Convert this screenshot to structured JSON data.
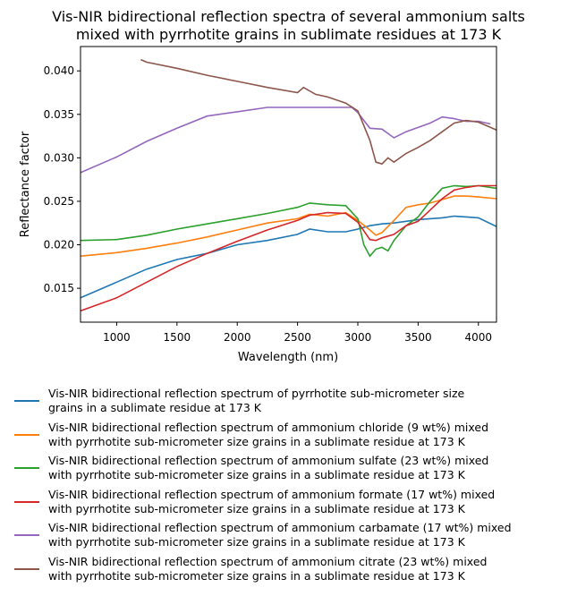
{
  "chart_data": {
    "type": "line",
    "title": "Vis-NIR bidirectional reflection spectra of several ammonium salts\nmixed with pyrrhotite grains in sublimate residues at 173 K",
    "title_lines": [
      "Vis-NIR bidirectional reflection spectra of several ammonium salts",
      "mixed with pyrrhotite grains in sublimate residues at 173 K"
    ],
    "xlabel": "Wavelength (nm)",
    "ylabel": "Reflectance factor",
    "xlim": [
      700,
      4150
    ],
    "ylim": [
      0.0111,
      0.0428
    ],
    "xticks": [
      1000,
      1500,
      2000,
      2500,
      3000,
      3500,
      4000
    ],
    "xtick_labels": [
      "1000",
      "1500",
      "2000",
      "2500",
      "3000",
      "3500",
      "4000"
    ],
    "yticks": [
      0.015,
      0.02,
      0.025,
      0.03,
      0.035,
      0.04
    ],
    "ytick_labels": [
      "0.015",
      "0.020",
      "0.025",
      "0.030",
      "0.035",
      "0.040"
    ],
    "grid": false,
    "legend_position": "below",
    "series": [
      {
        "name": "Vis-NIR bidirectional reflection spectrum of pyrrhotite sub-micrometer size\ngrains in a sublimate residue at 173 K",
        "label_lines": [
          "Vis-NIR bidirectional reflection spectrum of pyrrhotite sub-micrometer size",
          "grains in a sublimate residue at 173 K"
        ],
        "color": "#1f77b4",
        "x": [
          700,
          1000,
          1250,
          1500,
          1750,
          2000,
          2250,
          2500,
          2600,
          2750,
          2900,
          3000,
          3100,
          3200,
          3300,
          3400,
          3500,
          3600,
          3700,
          3800,
          3900,
          4000,
          4150
        ],
        "y": [
          0.0139,
          0.0157,
          0.0172,
          0.0183,
          0.019,
          0.02,
          0.0205,
          0.0212,
          0.0218,
          0.0215,
          0.0215,
          0.0218,
          0.0222,
          0.0224,
          0.0225,
          0.0227,
          0.0229,
          0.023,
          0.0231,
          0.0233,
          0.0232,
          0.0231,
          0.0221
        ]
      },
      {
        "name": "Vis-NIR bidirectional reflection spectrum of ammonium chloride (9 wt%) mixed\nwith pyrrhotite sub-micrometer size grains in a sublimate residue at 173 K",
        "label_lines": [
          "Vis-NIR bidirectional reflection spectrum of ammonium chloride (9 wt%) mixed",
          "with pyrrhotite sub-micrometer size grains in a sublimate residue at 173 K"
        ],
        "color": "#ff7f0e",
        "x": [
          700,
          1000,
          1250,
          1500,
          1750,
          2000,
          2250,
          2500,
          2600,
          2750,
          2900,
          3000,
          3100,
          3150,
          3200,
          3300,
          3400,
          3500,
          3600,
          3700,
          3800,
          3900,
          4000,
          4150
        ],
        "y": [
          0.0187,
          0.0191,
          0.0196,
          0.0202,
          0.0209,
          0.0217,
          0.0225,
          0.023,
          0.0235,
          0.0233,
          0.0237,
          0.0228,
          0.0217,
          0.0211,
          0.0214,
          0.0228,
          0.0243,
          0.0246,
          0.0248,
          0.0252,
          0.0256,
          0.0256,
          0.0255,
          0.0253
        ]
      },
      {
        "name": "Vis-NIR bidirectional reflection spectrum of ammonium sulfate (23 wt%) mixed\nwith pyrrhotite sub-micrometer size grains in a sublimate residue at 173 K",
        "label_lines": [
          "Vis-NIR bidirectional reflection spectrum of ammonium sulfate (23 wt%) mixed",
          "with pyrrhotite sub-micrometer size grains in a sublimate residue at 173 K"
        ],
        "color": "#2ca02c",
        "x": [
          700,
          1000,
          1250,
          1500,
          1750,
          2000,
          2250,
          2500,
          2600,
          2750,
          2900,
          3000,
          3050,
          3100,
          3150,
          3200,
          3250,
          3300,
          3400,
          3500,
          3600,
          3700,
          3800,
          3900,
          4000,
          4150
        ],
        "y": [
          0.0205,
          0.0206,
          0.0211,
          0.0218,
          0.0224,
          0.023,
          0.0236,
          0.0243,
          0.0248,
          0.0246,
          0.0245,
          0.023,
          0.02,
          0.0187,
          0.0195,
          0.0197,
          0.0193,
          0.0205,
          0.0222,
          0.0232,
          0.025,
          0.0265,
          0.0268,
          0.0267,
          0.0268,
          0.0265
        ]
      },
      {
        "name": "Vis-NIR bidirectional reflection spectrum of ammonium formate (17 wt%) mixed\nwith pyrrhotite sub-micrometer size grains in a sublimate residue at 173 K",
        "label_lines": [
          "Vis-NIR bidirectional reflection spectrum of ammonium formate (17 wt%) mixed",
          "with pyrrhotite sub-micrometer size grains in a sublimate residue at 173 K"
        ],
        "color": "#d62728",
        "x": [
          700,
          1000,
          1250,
          1500,
          1750,
          2000,
          2250,
          2500,
          2600,
          2750,
          2900,
          3000,
          3100,
          3150,
          3200,
          3300,
          3400,
          3500,
          3600,
          3700,
          3800,
          3900,
          4000,
          4150
        ],
        "y": [
          0.0124,
          0.0139,
          0.0157,
          0.0175,
          0.019,
          0.0204,
          0.0217,
          0.0228,
          0.0234,
          0.0237,
          0.0236,
          0.0226,
          0.0206,
          0.0205,
          0.0208,
          0.0212,
          0.0222,
          0.0227,
          0.024,
          0.0253,
          0.0263,
          0.0266,
          0.0268,
          0.0268
        ]
      },
      {
        "name": "Vis-NIR bidirectional reflection spectrum of ammonium carbamate (17 wt%) mixed\nwith pyrrhotite sub-micrometer size grains in a sublimate residue at 173 K",
        "label_lines": [
          "Vis-NIR bidirectional reflection spectrum of ammonium carbamate (17 wt%) mixed",
          "with pyrrhotite sub-micrometer size grains in a sublimate residue at 173 K"
        ],
        "color": "#9467bd",
        "x": [
          700,
          1000,
          1250,
          1500,
          1750,
          2000,
          2250,
          2500,
          2750,
          2950,
          3000,
          3100,
          3200,
          3300,
          3400,
          3500,
          3600,
          3700,
          3800,
          3900,
          4000,
          4100
        ],
        "y": [
          0.0283,
          0.0301,
          0.0319,
          0.0334,
          0.0348,
          0.0353,
          0.0358,
          0.0358,
          0.0358,
          0.0358,
          0.0352,
          0.0334,
          0.0333,
          0.0323,
          0.033,
          0.0335,
          0.034,
          0.0347,
          0.0345,
          0.0342,
          0.0342,
          0.0339
        ]
      },
      {
        "name": "Vis-NIR bidirectional reflection spectrum of ammonium citrate (23 wt%) mixed\nwith pyrrhotite sub-micrometer size grains in a sublimate residue at 173 K",
        "label_lines": [
          "Vis-NIR bidirectional reflection spectrum of ammonium citrate (23 wt%) mixed",
          "with pyrrhotite sub-micrometer size grains in a sublimate residue at 173 K"
        ],
        "color": "#8c564b",
        "x": [
          1200,
          1250,
          1500,
          1750,
          2000,
          2250,
          2500,
          2550,
          2650,
          2750,
          2900,
          3000,
          3100,
          3150,
          3200,
          3250,
          3300,
          3400,
          3500,
          3600,
          3700,
          3800,
          3900,
          4000,
          4150
        ],
        "y": [
          0.0413,
          0.041,
          0.0403,
          0.0395,
          0.0388,
          0.0381,
          0.0375,
          0.0381,
          0.0373,
          0.037,
          0.0363,
          0.0354,
          0.032,
          0.0295,
          0.0293,
          0.03,
          0.0295,
          0.0305,
          0.0312,
          0.032,
          0.033,
          0.034,
          0.0343,
          0.0341,
          0.0332
        ]
      }
    ]
  }
}
